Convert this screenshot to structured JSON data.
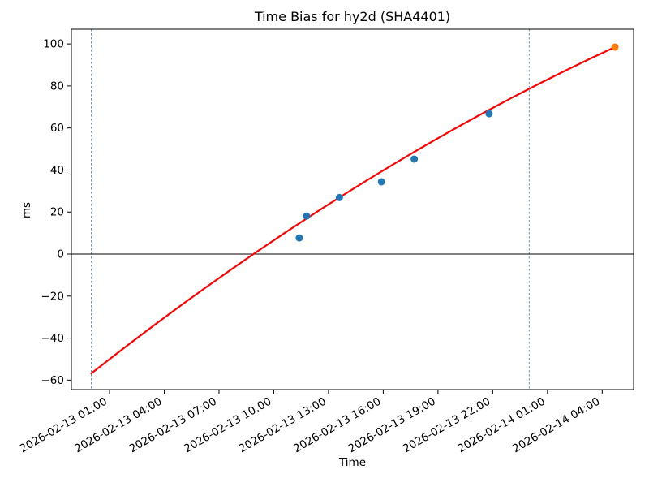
{
  "chart_data": {
    "type": "scatter",
    "title": "Time Bias for hy2d (SHA4401)",
    "xlabel": "Time",
    "ylabel": "ms",
    "x_unit_hours_since": "2026-02-13 00:00",
    "xlim": [
      -1.09,
      29.72
    ],
    "ylim": [
      -64.5,
      107
    ],
    "grid": false,
    "legend": "none",
    "x_ticks": {
      "hours": [
        1,
        4,
        7,
        10,
        13,
        16,
        19,
        22,
        25,
        28
      ],
      "labels": [
        "2026-02-13 01:00",
        "2026-02-13 04:00",
        "2026-02-13 07:00",
        "2026-02-13 10:00",
        "2026-02-13 13:00",
        "2026-02-13 16:00",
        "2026-02-13 19:00",
        "2026-02-13 22:00",
        "2026-02-14 01:00",
        "2026-02-14 04:00"
      ],
      "rotation_deg": 30
    },
    "y_ticks": [
      -60,
      -40,
      -20,
      0,
      20,
      40,
      60,
      80,
      100
    ],
    "series": [
      {
        "name": "observations",
        "kind": "scatter",
        "color": "#1f77b4",
        "marker_radius": 4.5,
        "points": [
          [
            11.4,
            7.7
          ],
          [
            11.8,
            18.1
          ],
          [
            13.6,
            26.9
          ],
          [
            15.9,
            34.4
          ],
          [
            17.7,
            45.2
          ],
          [
            21.8,
            66.8
          ]
        ]
      },
      {
        "name": "latest-observation",
        "kind": "scatter",
        "color": "#ff7f0e",
        "marker_radius": 4.5,
        "points": [
          [
            28.7,
            98.5
          ]
        ]
      }
    ],
    "fit_line": {
      "name": "fit-curve",
      "kind": "quadratic-bezier",
      "color": "#ff0000",
      "width": 2.2,
      "start": [
        0,
        -56.8
      ],
      "control": [
        14.4,
        41.5
      ],
      "end": [
        28.7,
        98.5
      ]
    },
    "vlines": {
      "hours": [
        0,
        24
      ],
      "color": "#5f9ac9",
      "style": "dashed",
      "width": 1
    },
    "hline": {
      "y": 0,
      "color": "#000000",
      "width": 1
    },
    "colors": {
      "spine": "#000000",
      "text": "#000000",
      "background": "#ffffff"
    }
  }
}
